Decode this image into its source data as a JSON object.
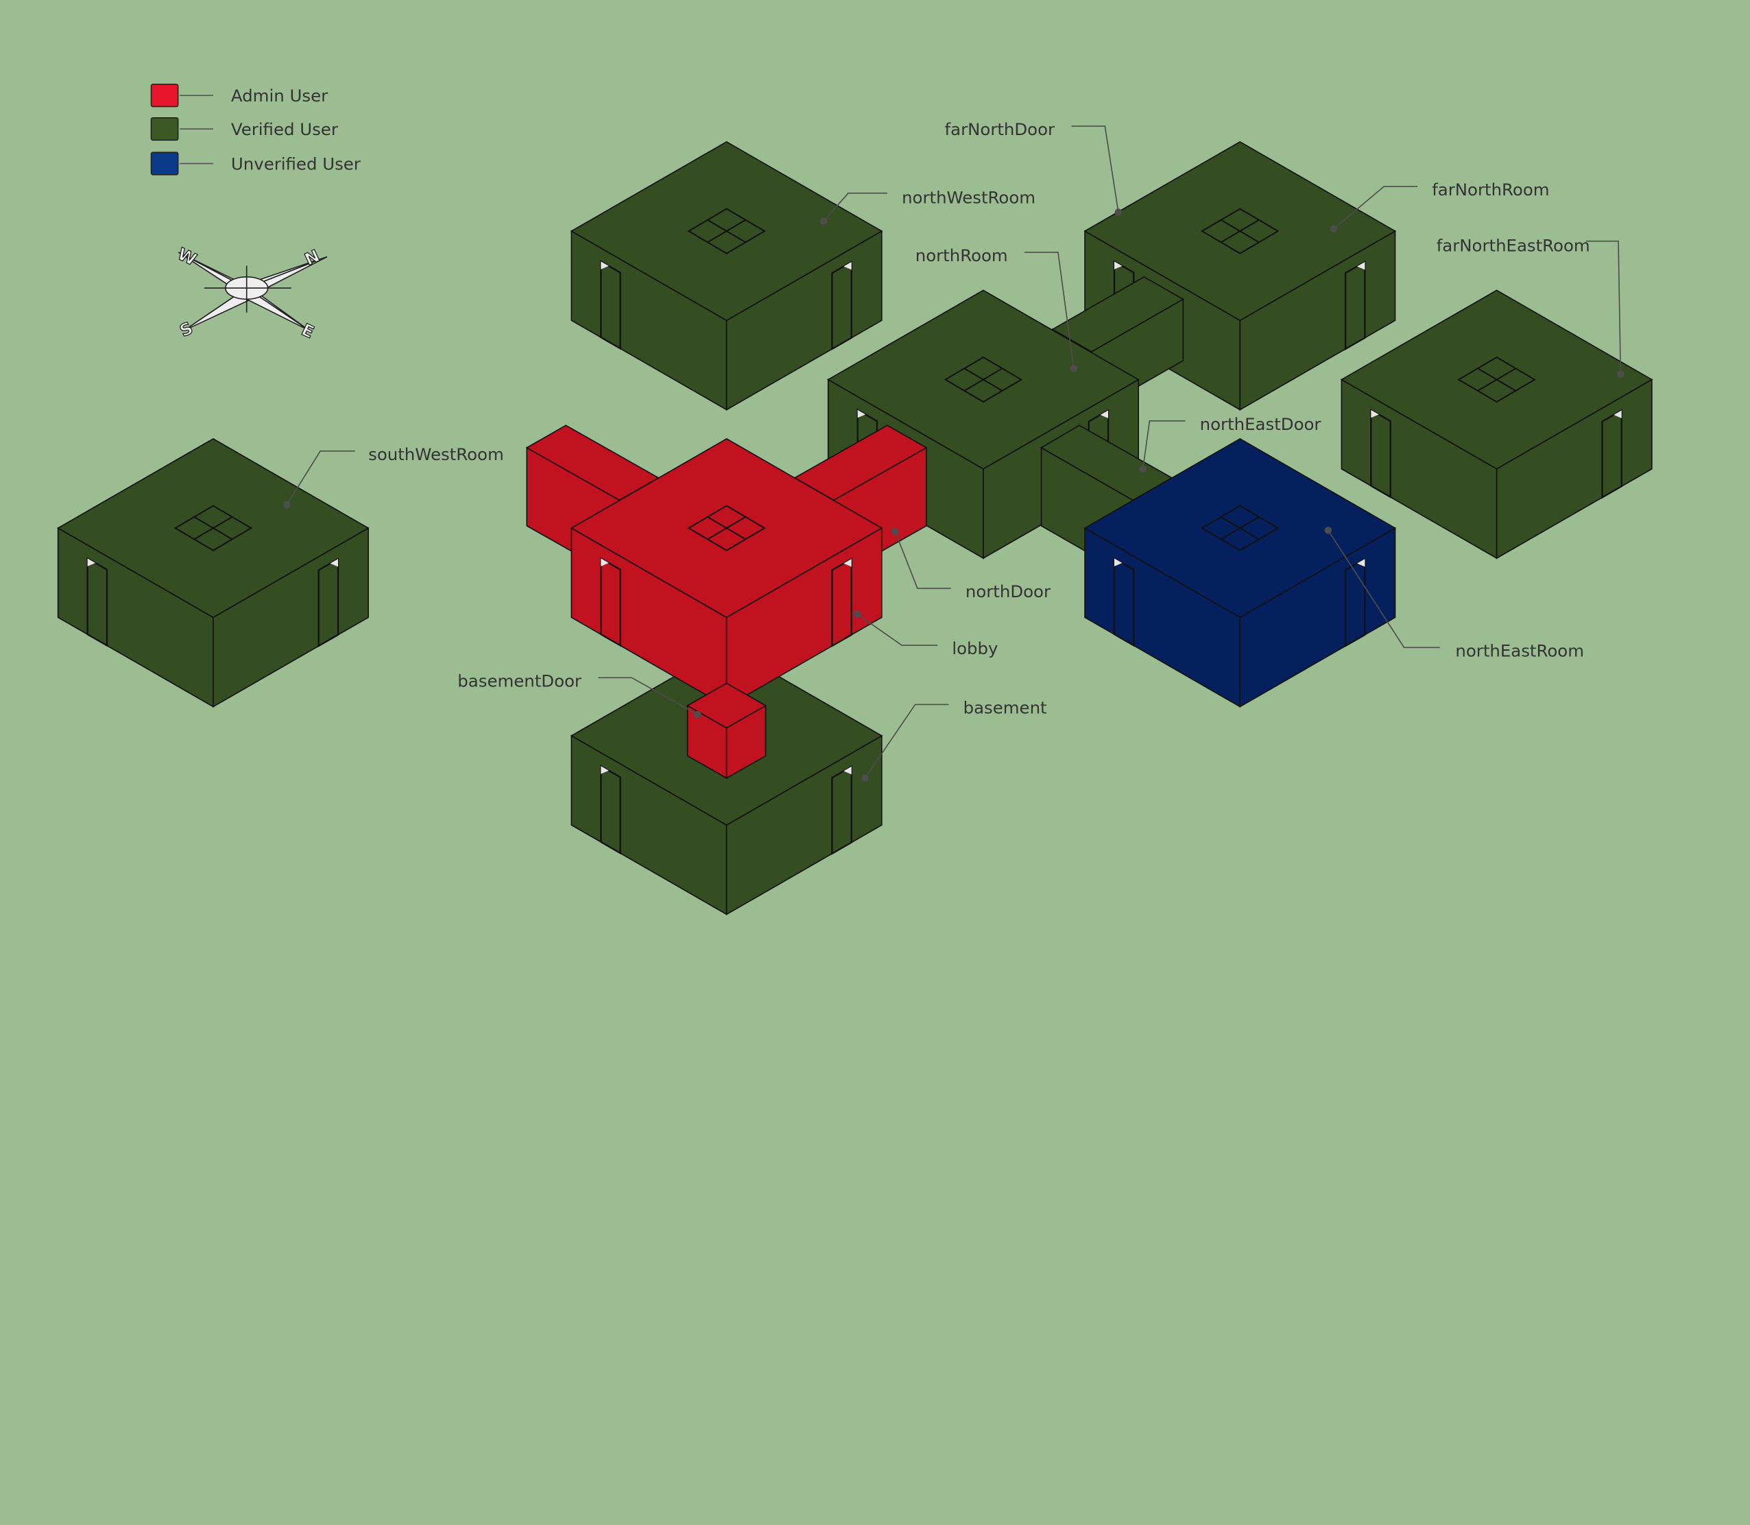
{
  "legend": {
    "items": [
      {
        "label": "Admin User",
        "color": "#e8162b"
      },
      {
        "label": "Verified User",
        "color": "#3b5a26"
      },
      {
        "label": "Unverified User",
        "color": "#0a3a8a"
      }
    ]
  },
  "compass": {
    "labels": [
      "W",
      "N",
      "S",
      "E"
    ]
  },
  "colors": {
    "background": "#9bbd91",
    "admin": {
      "top": "#c1121f",
      "left": "#c1121f",
      "right": "#c1121f"
    },
    "verified": {
      "top": "#344d21",
      "left": "#344d21",
      "right": "#344d21"
    },
    "unverified": {
      "top": "#05215d",
      "left": "#05215d",
      "right": "#05215d"
    },
    "outline": "#111111"
  },
  "rooms": [
    {
      "id": "northWestRoom",
      "label": "northWestRoom",
      "role": "verified"
    },
    {
      "id": "farNorthRoom",
      "label": "farNorthRoom",
      "role": "verified"
    },
    {
      "id": "northRoom",
      "label": "northRoom",
      "role": "verified"
    },
    {
      "id": "farNorthEastRoom",
      "label": "farNorthEastRoom",
      "role": "verified"
    },
    {
      "id": "southWestRoom",
      "label": "southWestRoom",
      "role": "verified"
    },
    {
      "id": "lobby",
      "label": "lobby",
      "role": "admin"
    },
    {
      "id": "northEastRoom",
      "label": "northEastRoom",
      "role": "unverified"
    },
    {
      "id": "basement",
      "label": "basement",
      "role": "verified"
    }
  ],
  "doors": [
    {
      "id": "farNorthDoor",
      "label": "farNorthDoor",
      "role": "verified"
    },
    {
      "id": "northEastDoor",
      "label": "northEastDoor",
      "role": "verified"
    },
    {
      "id": "northDoor",
      "label": "northDoor",
      "role": "admin"
    },
    {
      "id": "basementDoor",
      "label": "basementDoor",
      "role": "admin"
    },
    {
      "id": "southWestDoor",
      "role": "admin"
    }
  ]
}
